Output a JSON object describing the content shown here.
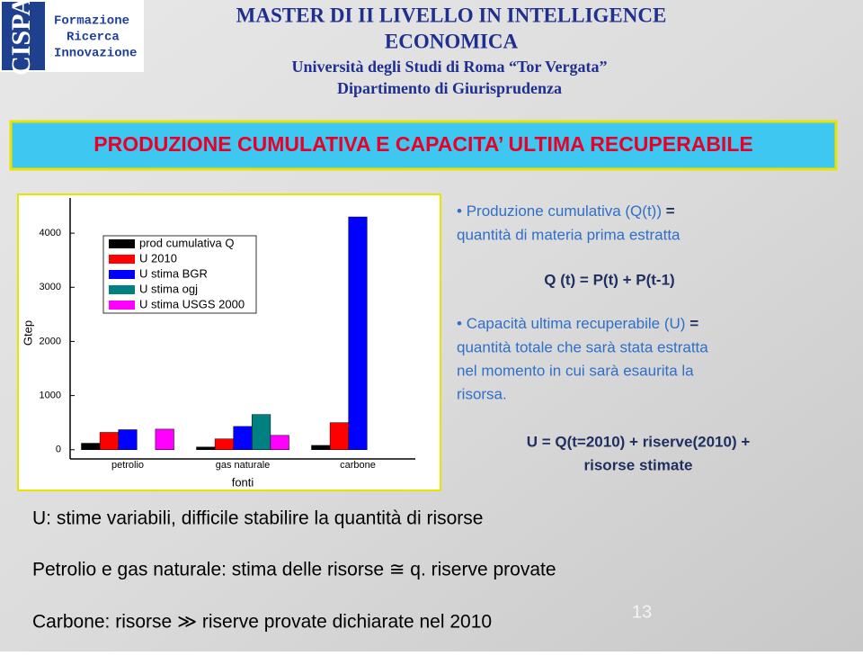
{
  "header": {
    "logo": "CISPA",
    "logo_lines": [
      "Formazione",
      "Ricerca",
      "Innovazione"
    ],
    "title_lines": [
      "MASTER DI II LIVELLO IN INTELLIGENCE",
      "ECONOMICA"
    ],
    "subtitle_lines": [
      "Università degli Studi di Roma “Tor Vergata”",
      "Dipartimento di Giurisprudenza"
    ]
  },
  "slide_title": "PRODUZIONE CUMULATIVA E CAPACITA’ ULTIMA RECUPERABILE",
  "chart_data": {
    "type": "bar",
    "categories": [
      "petrolio",
      "gas naturale",
      "carbone"
    ],
    "xlabel": "fonti",
    "ylabel": "Gtep",
    "series": [
      {
        "name": "prod cumulativa Q",
        "color": "#000000",
        "values": [
          120,
          50,
          80
        ]
      },
      {
        "name": "U 2010",
        "color": "#ff0000",
        "values": [
          320,
          200,
          500
        ]
      },
      {
        "name": "U stima BGR",
        "color": "#0000ff",
        "values": [
          370,
          430,
          4300
        ]
      },
      {
        "name": "U stima ogj",
        "color": "#008080",
        "values": [
          null,
          650,
          null
        ]
      },
      {
        "name": "U stima USGS 2000",
        "color": "#ff00ff",
        "values": [
          380,
          265,
          null
        ]
      }
    ],
    "ylim": [
      -170,
      4650
    ],
    "yticks": [
      0,
      1000,
      2000,
      3000,
      4000
    ]
  },
  "bullets": [
    {
      "term": "Produzione cumulativa (Q(t))",
      "rest": " =",
      "text": "quantità di materia prima estratta"
    },
    {
      "term": "Capacità ultima recuperabile (U)",
      "rest": " =",
      "text_lines": [
        "quantità totale che sarà stata estratta",
        "nel momento in cui sarà esaurita la",
        "risorsa."
      ]
    }
  ],
  "formula_q": "Q (t) = P(t) + P(t-1)",
  "formula_u_lines": [
    "U = Q(t=2010) + riserve(2010) +",
    "risorse stimate"
  ],
  "notes": [
    "U: stime variabili, difficile stabilire la quantità di risorse",
    "Petrolio e gas naturale: stima delle risorse  ≅  q. riserve provate",
    "Carbone: risorse ≫ riserve provate dichiarate nel 2010"
  ],
  "page_number": "13"
}
